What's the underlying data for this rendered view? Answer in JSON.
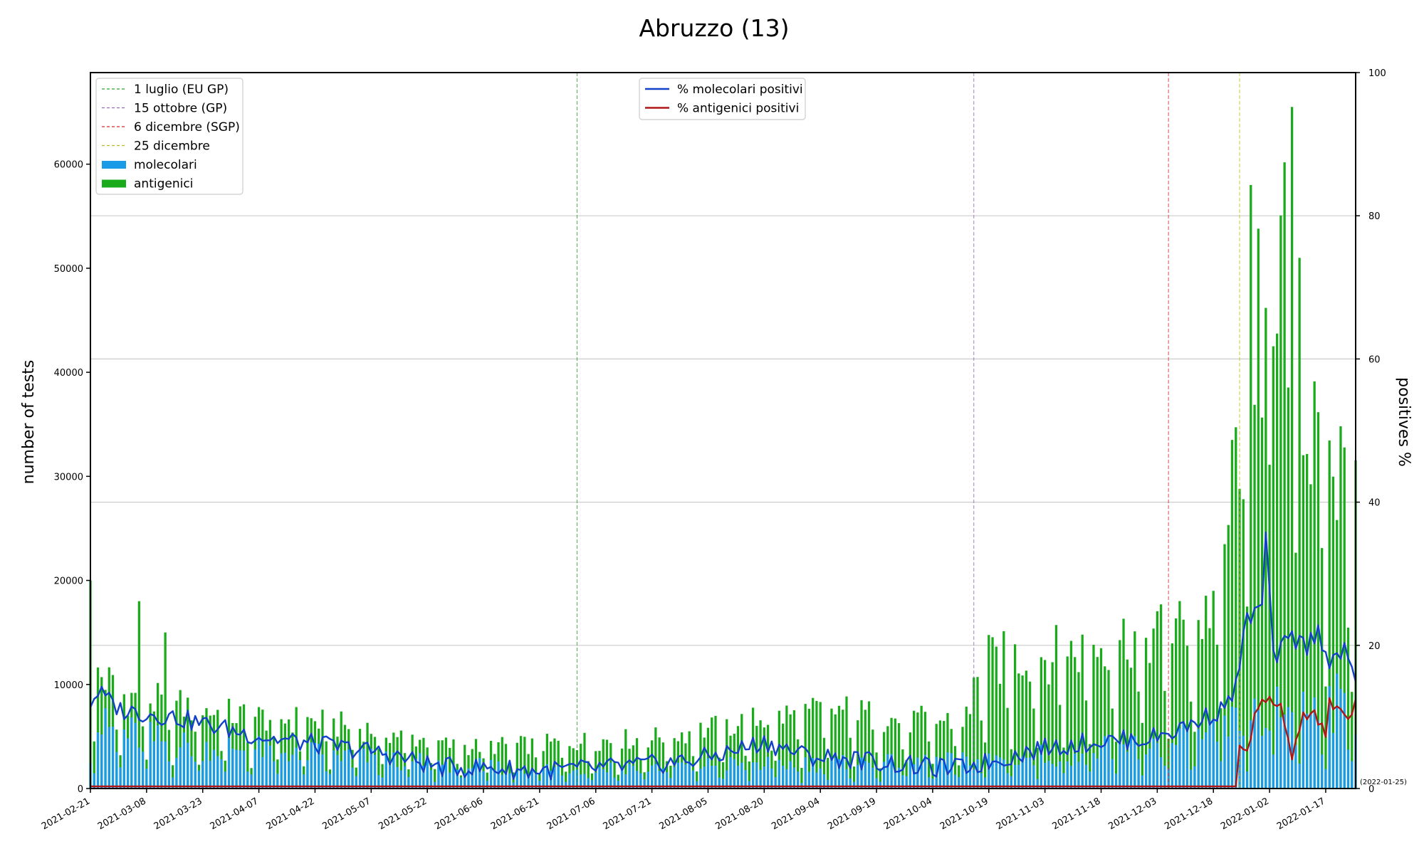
{
  "chart_data": {
    "type": "bar",
    "title": "Abruzzo (13)",
    "ylabel": "number of tests",
    "y2label": "positives %",
    "ylim": [
      0,
      68800
    ],
    "y2lim": [
      0,
      100
    ],
    "yticks": [
      0,
      10000,
      20000,
      30000,
      40000,
      50000,
      60000
    ],
    "y2ticks": [
      0,
      20,
      40,
      60,
      80,
      100
    ],
    "xlim": [
      "2021-02-21",
      "2022-01-25"
    ],
    "xticks": [
      "2021-02-21",
      "2021-03-08",
      "2021-03-23",
      "2021-04-07",
      "2021-04-22",
      "2021-05-07",
      "2021-05-22",
      "2021-06-06",
      "2021-06-21",
      "2021-07-06",
      "2021-07-21",
      "2021-08-05",
      "2021-08-20",
      "2021-09-04",
      "2021-09-19",
      "2021-10-04",
      "2021-10-19",
      "2021-11-03",
      "2021-11-18",
      "2021-12-03",
      "2021-12-18",
      "2022-01-02",
      "2022-01-17"
    ],
    "last_date_label": "(2022-01-25)",
    "grid": "horizontal at right-axis ticks",
    "legend_left": {
      "placement": "top-left",
      "entries": [
        {
          "label": "1 luglio (EU GP)",
          "kind": "dashed",
          "color": "#2ca02c"
        },
        {
          "label": "15 ottobre (GP)",
          "kind": "dashed",
          "color": "#9467bd"
        },
        {
          "label": "6 dicembre (SGP)",
          "kind": "dashed",
          "color": "#d62728"
        },
        {
          "label": "25 dicembre",
          "kind": "dashed",
          "color": "#bcbd22"
        },
        {
          "label": "molecolari",
          "kind": "bar",
          "color": "#1a9be8"
        },
        {
          "label": "antigenici",
          "kind": "bar",
          "color": "#1aab1a"
        }
      ]
    },
    "legend_right": {
      "placement": "top-center",
      "entries": [
        {
          "label": "% molecolari positivi",
          "color": "#1240c8"
        },
        {
          "label": "% antigenici positivi",
          "color": "#b01616"
        }
      ]
    },
    "event_lines": [
      {
        "date": "2021-07-01",
        "color": "#2ca02c"
      },
      {
        "date": "2021-10-15",
        "color": "#9467bd"
      },
      {
        "date": "2021-12-06",
        "color": "#d62728"
      },
      {
        "date": "2021-12-25",
        "color": "#bcbd22"
      }
    ],
    "series": [
      {
        "name": "antigenici",
        "axis": "left",
        "stacked": true,
        "anchors": [
          [
            "2021-02-21",
            12000
          ],
          [
            "2021-03-01",
            9000
          ],
          [
            "2021-03-15",
            8000
          ],
          [
            "2021-04-01",
            7000
          ],
          [
            "2021-04-20",
            6500
          ],
          [
            "2021-05-10",
            5500
          ],
          [
            "2021-05-30",
            4000
          ],
          [
            "2021-06-20",
            4200
          ],
          [
            "2021-07-01",
            4500
          ],
          [
            "2021-07-20",
            4800
          ],
          [
            "2021-08-10",
            6000
          ],
          [
            "2021-08-25",
            7000
          ],
          [
            "2021-09-10",
            7500
          ],
          [
            "2021-09-25",
            6500
          ],
          [
            "2021-10-10",
            6500
          ],
          [
            "2021-10-14",
            7000
          ],
          [
            "2021-10-16",
            12000
          ],
          [
            "2021-10-25",
            12500
          ],
          [
            "2021-11-10",
            13000
          ],
          [
            "2021-11-25",
            14500
          ],
          [
            "2021-12-06",
            15000
          ],
          [
            "2021-12-15",
            16000
          ],
          [
            "2021-12-20",
            20000
          ],
          [
            "2021-12-25",
            35000
          ],
          [
            "2021-12-28",
            45000
          ],
          [
            "2022-01-01",
            42000
          ],
          [
            "2022-01-06",
            50000
          ],
          [
            "2022-01-10",
            35000
          ],
          [
            "2022-01-15",
            32000
          ],
          [
            "2022-01-20",
            30000
          ],
          [
            "2022-01-25",
            32000
          ]
        ],
        "peaks": [
          [
            "2021-02-21",
            20000
          ],
          [
            "2021-03-06",
            18000
          ],
          [
            "2021-03-13",
            15000
          ],
          [
            "2021-12-28",
            58000
          ],
          [
            "2021-12-30",
            53800
          ],
          [
            "2022-01-08",
            65500
          ],
          [
            "2022-01-10",
            51000
          ],
          [
            "2022-01-03",
            42500
          ]
        ]
      },
      {
        "name": "molecolari",
        "axis": "left",
        "stacked": true,
        "anchors": [
          [
            "2021-02-21",
            6500
          ],
          [
            "2021-03-15",
            4500
          ],
          [
            "2021-04-15",
            3800
          ],
          [
            "2021-05-15",
            2800
          ],
          [
            "2021-06-15",
            2000
          ],
          [
            "2021-07-15",
            2200
          ],
          [
            "2021-08-15",
            2500
          ],
          [
            "2021-09-15",
            2500
          ],
          [
            "2021-10-15",
            2800
          ],
          [
            "2021-11-01",
            3300
          ],
          [
            "2021-11-20",
            4000
          ],
          [
            "2021-12-10",
            4800
          ],
          [
            "2021-12-25",
            6500
          ],
          [
            "2022-01-05",
            8000
          ],
          [
            "2022-01-15",
            8500
          ],
          [
            "2022-01-25",
            8500
          ]
        ]
      },
      {
        "name": "% molecolari positivi",
        "axis": "right",
        "anchors": [
          [
            "2021-02-21",
            12
          ],
          [
            "2021-02-23",
            13.5
          ],
          [
            "2021-03-01",
            11
          ],
          [
            "2021-03-15",
            10
          ],
          [
            "2021-04-01",
            8
          ],
          [
            "2021-04-10",
            7
          ],
          [
            "2021-04-25",
            6
          ],
          [
            "2021-05-10",
            5
          ],
          [
            "2021-05-25",
            3
          ],
          [
            "2021-06-10",
            2.8
          ],
          [
            "2021-06-20",
            2.5
          ],
          [
            "2021-07-05",
            2.8
          ],
          [
            "2021-07-20",
            3.3
          ],
          [
            "2021-08-01",
            4
          ],
          [
            "2021-08-10",
            5
          ],
          [
            "2021-08-20",
            6.5
          ],
          [
            "2021-09-01",
            4.5
          ],
          [
            "2021-09-15",
            4
          ],
          [
            "2021-10-01",
            3
          ],
          [
            "2021-10-10",
            2.8
          ],
          [
            "2021-10-20",
            3.8
          ],
          [
            "2021-11-01",
            5.5
          ],
          [
            "2021-11-15",
            6.5
          ],
          [
            "2021-12-01",
            7
          ],
          [
            "2021-12-10",
            8.5
          ],
          [
            "2021-12-20",
            11
          ],
          [
            "2021-12-24",
            14
          ],
          [
            "2021-12-27",
            24
          ],
          [
            "2021-12-31",
            25
          ],
          [
            "2022-01-01",
            36
          ],
          [
            "2022-01-03",
            18
          ],
          [
            "2022-01-06",
            20
          ],
          [
            "2022-01-08",
            21
          ],
          [
            "2022-01-12",
            20
          ],
          [
            "2022-01-15",
            22
          ],
          [
            "2022-01-18",
            18
          ],
          [
            "2022-01-22",
            19
          ],
          [
            "2022-01-25",
            15
          ]
        ]
      },
      {
        "name": "% antigenici positivi",
        "axis": "right",
        "anchors": [
          [
            "2021-02-21",
            0.3
          ],
          [
            "2021-12-24",
            0.3
          ],
          [
            "2021-12-25",
            6
          ],
          [
            "2021-12-27",
            5.5
          ],
          [
            "2021-12-29",
            10
          ],
          [
            "2021-12-31",
            11.5
          ],
          [
            "2022-01-02",
            12
          ],
          [
            "2022-01-05",
            11.5
          ],
          [
            "2022-01-07",
            7
          ],
          [
            "2022-01-08",
            4.5
          ],
          [
            "2022-01-10",
            9
          ],
          [
            "2022-01-13",
            11
          ],
          [
            "2022-01-17",
            7.5
          ],
          [
            "2022-01-18",
            12
          ],
          [
            "2022-01-21",
            11
          ],
          [
            "2022-01-23",
            10
          ],
          [
            "2022-01-25",
            12
          ]
        ]
      }
    ]
  }
}
